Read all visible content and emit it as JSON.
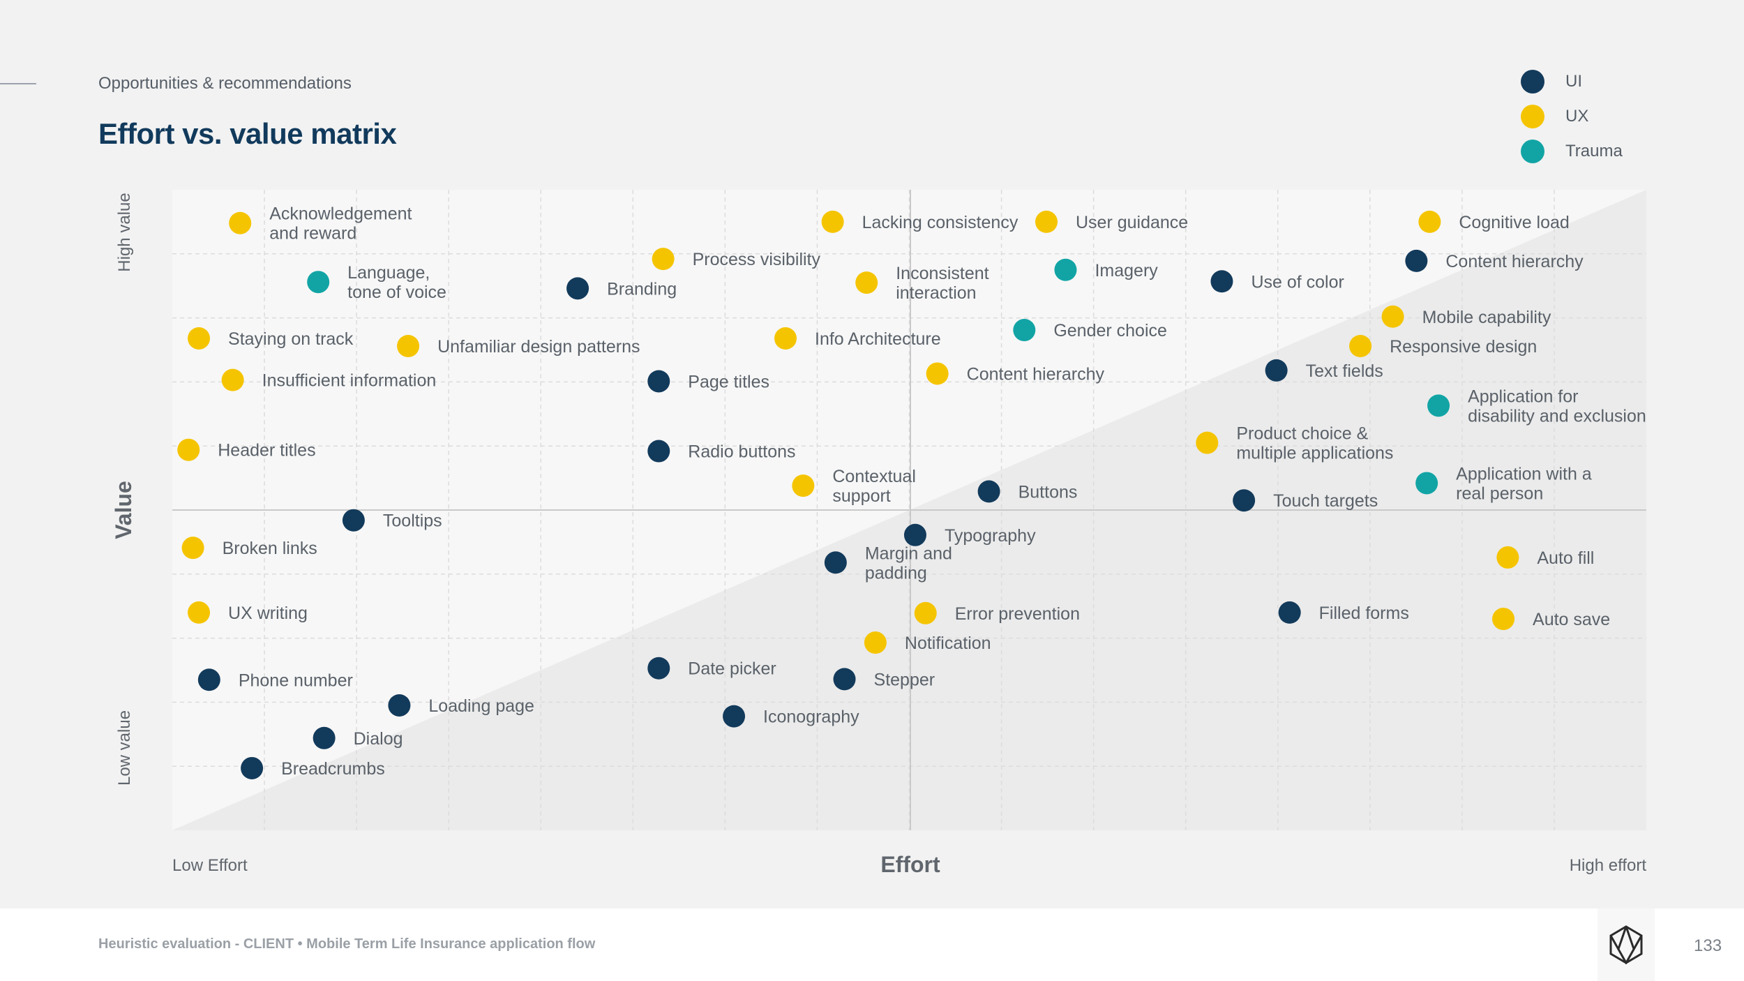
{
  "header": {
    "subtitle": "Opportunities & recommendations",
    "title": "Effort vs. value matrix"
  },
  "legend": [
    {
      "label": "UI",
      "color": "#123a5b"
    },
    {
      "label": "UX",
      "color": "#f5c400"
    },
    {
      "label": "Trauma",
      "color": "#12a4a5"
    }
  ],
  "chart_data": {
    "type": "scatter",
    "title": "Effort vs. value matrix",
    "xlabel": "Effort",
    "ylabel": "Value",
    "x_low_label": "Low Effort",
    "x_high_label": "High effort",
    "y_low_label": "Low value",
    "y_high_label": "High value",
    "xlim": [
      0,
      100
    ],
    "ylim": [
      0,
      100
    ],
    "series_colors": {
      "UI": "#123a5b",
      "UX": "#f5c400",
      "Trauma": "#12a4a5"
    },
    "points": [
      {
        "label": [
          "Acknowledgement",
          "and reward"
        ],
        "category": "UX",
        "x": 4.6,
        "y": 94.8
      },
      {
        "label": [
          "Lacking consistency"
        ],
        "category": "UX",
        "x": 44.8,
        "y": 95.0
      },
      {
        "label": [
          "User guidance"
        ],
        "category": "UX",
        "x": 59.3,
        "y": 95.0
      },
      {
        "label": [
          "Cognitive load"
        ],
        "category": "UX",
        "x": 85.3,
        "y": 95.0
      },
      {
        "label": [
          "Process visibility"
        ],
        "category": "UX",
        "x": 33.3,
        "y": 89.2
      },
      {
        "label": [
          "Content hierarchy"
        ],
        "category": "UI",
        "x": 84.4,
        "y": 88.9
      },
      {
        "label": [
          "Language,",
          "tone of voice"
        ],
        "category": "Trauma",
        "x": 9.9,
        "y": 85.6
      },
      {
        "label": [
          "Branding"
        ],
        "category": "UI",
        "x": 27.5,
        "y": 84.6
      },
      {
        "label": [
          "Inconsistent",
          "interaction"
        ],
        "category": "UX",
        "x": 47.1,
        "y": 85.5
      },
      {
        "label": [
          "Imagery"
        ],
        "category": "Trauma",
        "x": 60.6,
        "y": 87.5
      },
      {
        "label": [
          "Use of color"
        ],
        "category": "UI",
        "x": 71.2,
        "y": 85.7
      },
      {
        "label": [
          "Mobile capability"
        ],
        "category": "UX",
        "x": 82.8,
        "y": 80.2
      },
      {
        "label": [
          "Staying on track"
        ],
        "category": "UX",
        "x": 1.8,
        "y": 76.8
      },
      {
        "label": [
          "Unfamiliar design patterns"
        ],
        "category": "UX",
        "x": 16.0,
        "y": 75.6
      },
      {
        "label": [
          "Info Architecture"
        ],
        "category": "UX",
        "x": 41.6,
        "y": 76.8
      },
      {
        "label": [
          "Gender choice"
        ],
        "category": "Trauma",
        "x": 57.8,
        "y": 78.1
      },
      {
        "label": [
          "Responsive design"
        ],
        "category": "UX",
        "x": 80.6,
        "y": 75.6
      },
      {
        "label": [
          "Text fields"
        ],
        "category": "UI",
        "x": 74.9,
        "y": 71.8
      },
      {
        "label": [
          "Insufficient information"
        ],
        "category": "UX",
        "x": 4.1,
        "y": 70.3
      },
      {
        "label": [
          "Page titles"
        ],
        "category": "UI",
        "x": 33.0,
        "y": 70.1
      },
      {
        "label": [
          "Content hierarchy"
        ],
        "category": "UX",
        "x": 51.9,
        "y": 71.3
      },
      {
        "label": [
          "Application for",
          "disability and exclusion"
        ],
        "category": "Trauma",
        "x": 85.9,
        "y": 66.3
      },
      {
        "label": [
          "Product choice &",
          "multiple applications"
        ],
        "category": "UX",
        "x": 70.2,
        "y": 60.5
      },
      {
        "label": [
          "Header titles"
        ],
        "category": "UX",
        "x": 1.1,
        "y": 59.4
      },
      {
        "label": [
          "Radio buttons"
        ],
        "category": "UI",
        "x": 33.0,
        "y": 59.2
      },
      {
        "label": [
          "Contextual",
          "support"
        ],
        "category": "UX",
        "x": 42.8,
        "y": 53.8
      },
      {
        "label": [
          "Buttons"
        ],
        "category": "UI",
        "x": 55.4,
        "y": 52.9
      },
      {
        "label": [
          "Application with a",
          "real person"
        ],
        "category": "Trauma",
        "x": 85.1,
        "y": 54.2
      },
      {
        "label": [
          "Touch targets"
        ],
        "category": "UI",
        "x": 72.7,
        "y": 51.5
      },
      {
        "label": [
          "Tooltips"
        ],
        "category": "UI",
        "x": 12.3,
        "y": 48.4
      },
      {
        "label": [
          "Typography"
        ],
        "category": "UI",
        "x": 50.4,
        "y": 46.1
      },
      {
        "label": [
          "Broken links"
        ],
        "category": "UX",
        "x": 1.4,
        "y": 44.1
      },
      {
        "label": [
          "Margin and",
          "padding"
        ],
        "category": "UI",
        "x": 45.0,
        "y": 41.8
      },
      {
        "label": [
          "Auto fill"
        ],
        "category": "UX",
        "x": 90.6,
        "y": 42.6
      },
      {
        "label": [
          "UX writing"
        ],
        "category": "UX",
        "x": 1.8,
        "y": 34.0
      },
      {
        "label": [
          "Error prevention"
        ],
        "category": "UX",
        "x": 51.1,
        "y": 33.9
      },
      {
        "label": [
          "Filled forms"
        ],
        "category": "UI",
        "x": 75.8,
        "y": 34.0
      },
      {
        "label": [
          "Auto save"
        ],
        "category": "UX",
        "x": 90.3,
        "y": 33.0
      },
      {
        "label": [
          "Notification"
        ],
        "category": "UX",
        "x": 47.7,
        "y": 29.3
      },
      {
        "label": [
          "Date picker"
        ],
        "category": "UI",
        "x": 33.0,
        "y": 25.3
      },
      {
        "label": [
          "Stepper"
        ],
        "category": "UI",
        "x": 45.6,
        "y": 23.6
      },
      {
        "label": [
          "Phone number"
        ],
        "category": "UI",
        "x": 2.5,
        "y": 23.5
      },
      {
        "label": [
          "Loading page"
        ],
        "category": "UI",
        "x": 15.4,
        "y": 19.5
      },
      {
        "label": [
          "Iconography"
        ],
        "category": "UI",
        "x": 38.1,
        "y": 17.8
      },
      {
        "label": [
          "Dialog"
        ],
        "category": "UI",
        "x": 10.3,
        "y": 14.4
      },
      {
        "label": [
          "Breadcrumbs"
        ],
        "category": "UI",
        "x": 5.4,
        "y": 9.7
      }
    ]
  },
  "footer": {
    "text": "Heuristic evaluation - CLIENT • Mobile Term Life Insurance application flow",
    "page_number": "133"
  }
}
